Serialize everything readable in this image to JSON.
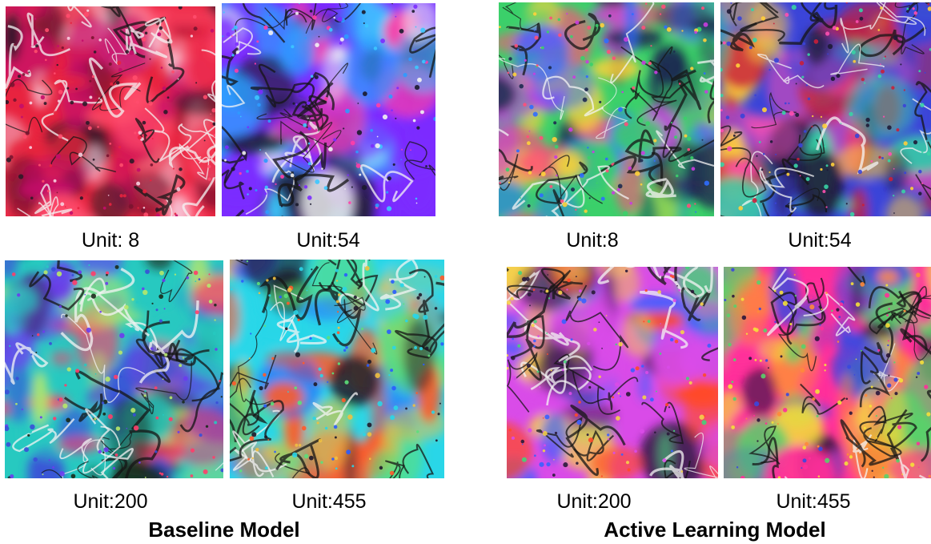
{
  "panels": {
    "baseline": {
      "title": "Baseline Model",
      "units": [
        {
          "label": "Unit: 8",
          "palette": [
            "#e8233f",
            "#ff4d6d",
            "#c40d6a",
            "#2e1a28",
            "#f7d0e0",
            "#7a1430"
          ]
        },
        {
          "label": "Unit:54",
          "palette": [
            "#7b2cff",
            "#ff3da8",
            "#2d9bff",
            "#f2f2f2",
            "#1b1b2e",
            "#3cc8ff"
          ]
        },
        {
          "label": "Unit:200",
          "palette": [
            "#27c9c0",
            "#3a4fd8",
            "#b6e86a",
            "#1a2a1a",
            "#ff3d6a",
            "#6b3cf0"
          ]
        },
        {
          "label": "Unit:455",
          "palette": [
            "#29d6e8",
            "#2a5cff",
            "#5be07a",
            "#f0c040",
            "#1e1a2a",
            "#ff5a2a"
          ]
        }
      ]
    },
    "active": {
      "title": "Active Learning Model",
      "units": [
        {
          "label": "Unit:8",
          "palette": [
            "#3bd06a",
            "#2f6dff",
            "#c93de0",
            "#ffd23a",
            "#ff4f7a",
            "#1e2a50"
          ]
        },
        {
          "label": "Unit:54",
          "palette": [
            "#3a44d8",
            "#ff4fb0",
            "#39d3a5",
            "#ffcf3a",
            "#c81f3a",
            "#1e1b36"
          ]
        },
        {
          "label": "Unit:200",
          "palette": [
            "#d94be8",
            "#46d07a",
            "#3a60ff",
            "#f5d04a",
            "#ff4a2a",
            "#2a1a3a"
          ]
        },
        {
          "label": "Unit:455",
          "palette": [
            "#ff2f9a",
            "#ff8a3a",
            "#3a48e0",
            "#f5e03a",
            "#5ad06a",
            "#2a163a"
          ]
        }
      ]
    }
  }
}
